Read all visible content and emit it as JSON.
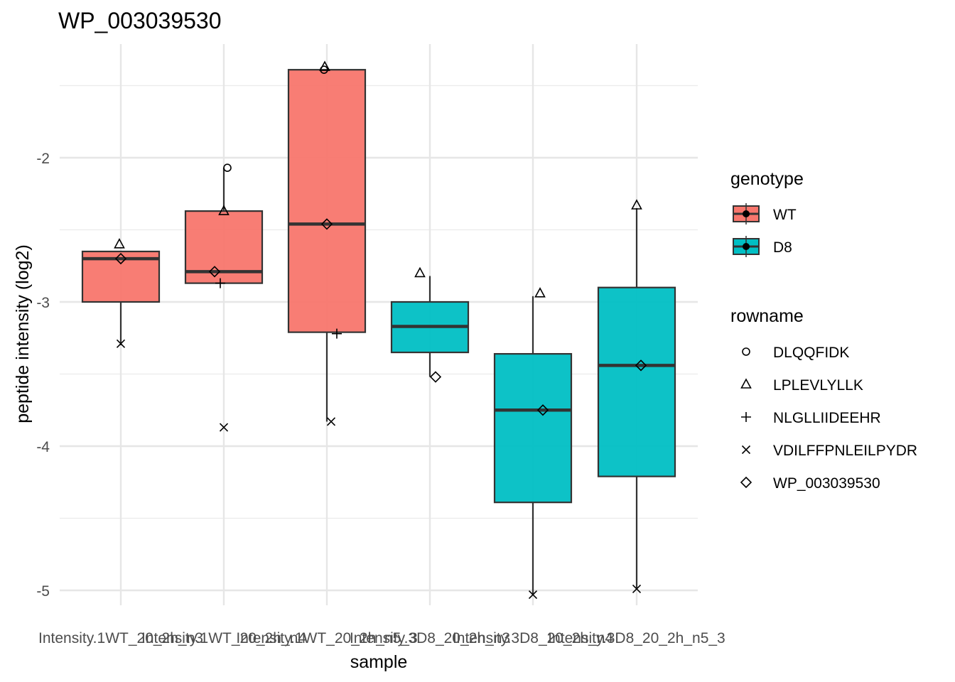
{
  "chart_data": {
    "type": "boxplot",
    "title": "WP_003039530",
    "xlabel": "sample",
    "ylabel": "peptide intensity (log2)",
    "ylim": [
      -5.1,
      -1.3
    ],
    "yticks": [
      -5,
      -4,
      -3,
      -2
    ],
    "grid": true,
    "categories": [
      "Intensity.1WT_20_2h_n3",
      "Intensity.1WT_20_2h_n4",
      "Intensity.1WT_20_2h_n5_3",
      "Intensity.3D8_20_2h_n3",
      "Intensity.3D8_20_2h_n4",
      "Intensity.3D8_20_2h_n5_3"
    ],
    "genotype": [
      "WT",
      "WT",
      "WT",
      "D8",
      "D8",
      "D8"
    ],
    "boxes": [
      {
        "q1": -3.0,
        "median": -2.7,
        "q3": -2.65,
        "whisker_low": -3.3,
        "whisker_high": -2.65
      },
      {
        "q1": -2.87,
        "median": -2.79,
        "q3": -2.37,
        "whisker_low": -2.87,
        "whisker_high": -2.07
      },
      {
        "q1": -3.21,
        "median": -2.46,
        "q3": -1.39,
        "whisker_low": -3.83,
        "whisker_high": -1.39
      },
      {
        "q1": -3.35,
        "median": -3.17,
        "q3": -3.0,
        "whisker_low": -3.52,
        "whisker_high": -2.82
      },
      {
        "q1": -4.39,
        "median": -3.75,
        "q3": -3.36,
        "whisker_low": -5.03,
        "whisker_high": -2.96
      },
      {
        "q1": -4.21,
        "median": -3.44,
        "q3": -2.9,
        "whisker_low": -4.99,
        "whisker_high": -2.35
      }
    ],
    "points": [
      {
        "sample": 0,
        "rowname": "LPLEVLYLLK",
        "y": -2.6
      },
      {
        "sample": 0,
        "rowname": "WP_003039530",
        "y": -2.7
      },
      {
        "sample": 0,
        "rowname": "VDILFFPNLEILPYDR",
        "y": -3.29
      },
      {
        "sample": 1,
        "rowname": "DLQQFIDK",
        "y": -2.07
      },
      {
        "sample": 1,
        "rowname": "LPLEVLYLLK",
        "y": -2.37
      },
      {
        "sample": 1,
        "rowname": "WP_003039530",
        "y": -2.79
      },
      {
        "sample": 1,
        "rowname": "NLGLLIIDEEHR",
        "y": -2.87
      },
      {
        "sample": 1,
        "rowname": "VDILFFPNLEILPYDR",
        "y": -3.87
      },
      {
        "sample": 2,
        "rowname": "LPLEVLYLLK",
        "y": -1.37
      },
      {
        "sample": 2,
        "rowname": "DLQQFIDK",
        "y": -1.39
      },
      {
        "sample": 2,
        "rowname": "WP_003039530",
        "y": -2.46
      },
      {
        "sample": 2,
        "rowname": "NLGLLIIDEEHR",
        "y": -3.22
      },
      {
        "sample": 2,
        "rowname": "VDILFFPNLEILPYDR",
        "y": -3.83
      },
      {
        "sample": 3,
        "rowname": "LPLEVLYLLK",
        "y": -2.8
      },
      {
        "sample": 3,
        "rowname": "WP_003039530",
        "y": -3.52
      },
      {
        "sample": 4,
        "rowname": "LPLEVLYLLK",
        "y": -2.94
      },
      {
        "sample": 4,
        "rowname": "WP_003039530",
        "y": -3.75
      },
      {
        "sample": 4,
        "rowname": "VDILFFPNLEILPYDR",
        "y": -5.03
      },
      {
        "sample": 5,
        "rowname": "LPLEVLYLLK",
        "y": -2.33
      },
      {
        "sample": 5,
        "rowname": "WP_003039530",
        "y": -3.44
      },
      {
        "sample": 5,
        "rowname": "VDILFFPNLEILPYDR",
        "y": -4.99
      }
    ],
    "legend_genotype": {
      "title": "genotype",
      "entries": [
        {
          "name": "WT",
          "color": "#F8766D"
        },
        {
          "name": "D8",
          "color": "#00BFC4"
        }
      ]
    },
    "legend_rowname": {
      "title": "rowname",
      "entries": [
        {
          "name": "DLQQFIDK",
          "shape": "circle"
        },
        {
          "name": "LPLEVLYLLK",
          "shape": "triangle"
        },
        {
          "name": "NLGLLIIDEEHR",
          "shape": "plus"
        },
        {
          "name": "VDILFFPNLEILPYDR",
          "shape": "cross"
        },
        {
          "name": "WP_003039530",
          "shape": "diamond"
        }
      ]
    },
    "legend_placement": "right",
    "colors": {
      "WT": "#F8766D",
      "D8": "#00BFC4"
    }
  }
}
